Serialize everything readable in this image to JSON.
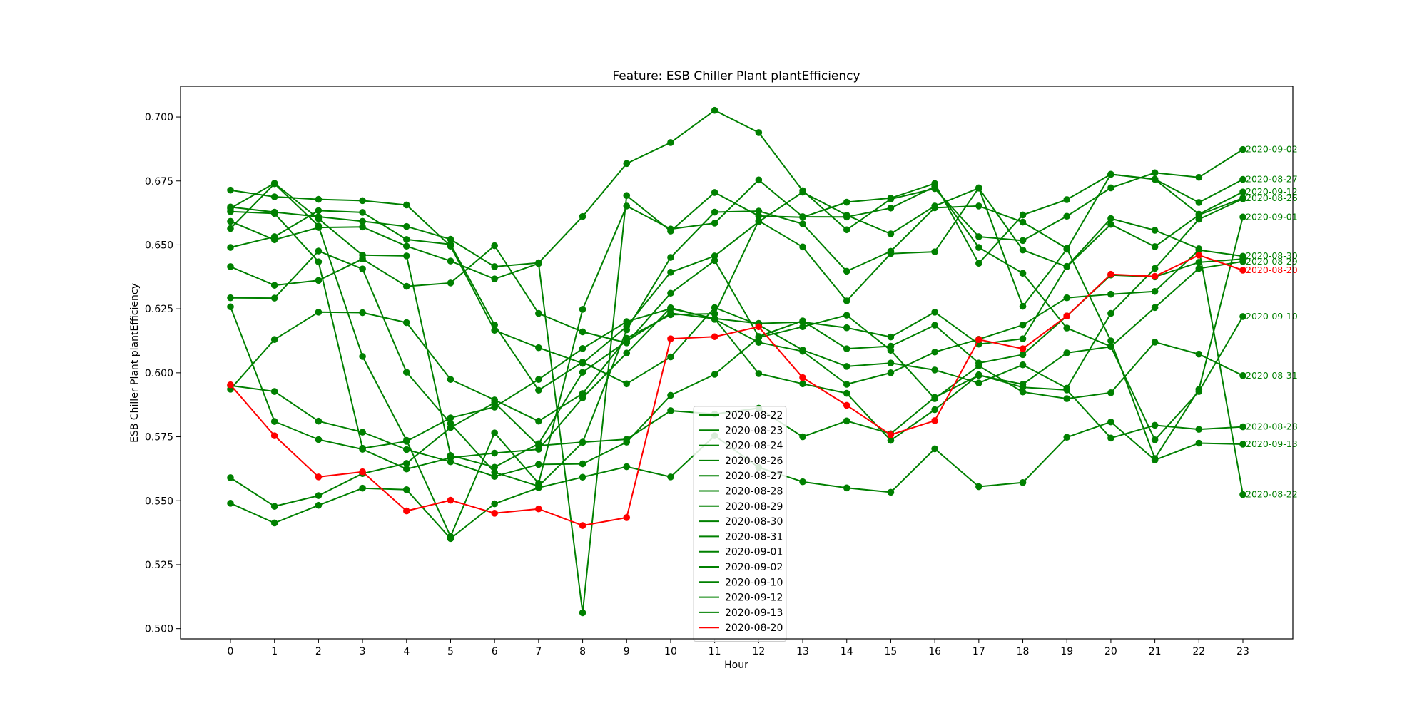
{
  "chart_data": {
    "type": "line",
    "title": "Feature: ESB Chiller Plant plantEfficiency",
    "xlabel": "Hour",
    "ylabel": "ESB Chiller Plant plantEfficiency",
    "x": [
      0,
      1,
      2,
      3,
      4,
      5,
      6,
      7,
      8,
      9,
      10,
      11,
      12,
      13,
      14,
      15,
      16,
      17,
      18,
      19,
      20,
      21,
      22,
      23
    ],
    "x_tick_labels": [
      "0",
      "1",
      "2",
      "3",
      "4",
      "5",
      "6",
      "7",
      "8",
      "9",
      "10",
      "11",
      "12",
      "13",
      "14",
      "15",
      "16",
      "17",
      "18",
      "19",
      "20",
      "21",
      "22",
      "23"
    ],
    "ylim": [
      0.496,
      0.712
    ],
    "y_ticks": [
      0.5,
      0.525,
      0.55,
      0.575,
      0.6,
      0.625,
      0.65,
      0.675,
      0.7
    ],
    "y_tick_labels": [
      "0.500",
      "0.525",
      "0.550",
      "0.575",
      "0.600",
      "0.625",
      "0.650",
      "0.675",
      "0.700"
    ],
    "grid": false,
    "legend_position": "bottom-center",
    "colors": {
      "normal": "#008000",
      "highlight": "#ff0000"
    },
    "series": [
      {
        "name": "2020-08-22",
        "color": "#008000",
        "label_at_end": true,
        "values": [
          0.663,
          0.6623,
          0.6434,
          0.5705,
          0.5732,
          0.5824,
          0.5866,
          0.5974,
          0.6095,
          0.62,
          0.6251,
          0.6212,
          0.6193,
          0.6198,
          0.6176,
          0.614,
          0.6237,
          0.6112,
          0.6133,
          0.6416,
          0.6603,
          0.6557,
          0.6485,
          0.5524
        ]
      },
      {
        "name": "2020-08-23",
        "color": "#008000",
        "label_at_end": false,
        "values": [
          0.6415,
          0.6342,
          0.6361,
          0.6445,
          0.6338,
          0.6351,
          0.6497,
          0.6232,
          0.616,
          0.6117,
          0.6311,
          0.6439,
          0.6142,
          0.6203,
          0.6094,
          0.6104,
          0.6186,
          0.6038,
          0.6071,
          0.6222,
          0.6382,
          0.6375,
          0.6432,
          0.6445
        ]
      },
      {
        "name": "2020-08-24",
        "color": "#008000",
        "label_at_end": false,
        "values": [
          0.649,
          0.6532,
          0.6634,
          0.6627,
          0.6521,
          0.6502,
          0.6187,
          0.5932,
          0.6042,
          0.5957,
          0.6062,
          0.6255,
          0.6187,
          0.6089,
          0.6025,
          0.6038,
          0.6011,
          0.596,
          0.6031,
          0.594,
          0.6232,
          0.6408,
          0.66,
          0.668
        ]
      },
      {
        "name": "2020-08-26",
        "color": "#008000",
        "label_at_end": true,
        "values": [
          0.6714,
          0.6688,
          0.6678,
          0.6673,
          0.6656,
          0.6495,
          0.6166,
          0.6098,
          0.6037,
          0.6181,
          0.6393,
          0.6457,
          0.659,
          0.6706,
          0.6616,
          0.6543,
          0.6652,
          0.6722,
          0.648,
          0.6415,
          0.658,
          0.6493,
          0.6617,
          0.6683
        ]
      },
      {
        "name": "2020-08-27",
        "color": "#008000",
        "label_at_end": true,
        "values": [
          0.5936,
          0.613,
          0.6237,
          0.6235,
          0.6196,
          0.5974,
          0.5894,
          0.5811,
          0.5919,
          0.6135,
          0.6227,
          0.6231,
          0.6594,
          0.6492,
          0.6281,
          0.6466,
          0.6473,
          0.6723,
          0.626,
          0.6483,
          0.6776,
          0.6757,
          0.6666,
          0.6756
        ]
      },
      {
        "name": "2020-08-28",
        "color": "#008000",
        "label_at_end": true,
        "values": [
          0.6643,
          0.6741,
          0.6602,
          0.646,
          0.6457,
          0.5677,
          0.5631,
          0.5723,
          0.6002,
          0.6124,
          0.6233,
          0.6211,
          0.5997,
          0.5957,
          0.592,
          0.5736,
          0.5856,
          0.5992,
          0.5943,
          0.5933,
          0.5745,
          0.5795,
          0.5779,
          0.5789
        ]
      },
      {
        "name": "2020-08-29",
        "color": "#008000",
        "label_at_end": true,
        "values": [
          0.559,
          0.5478,
          0.552,
          0.5606,
          0.5646,
          0.5786,
          0.5883,
          0.5715,
          0.5729,
          0.574,
          0.5852,
          0.5839,
          0.5862,
          0.575,
          0.5812,
          0.5762,
          0.5904,
          0.599,
          0.5955,
          0.6078,
          0.6102,
          0.6255,
          0.6408,
          0.6435
        ]
      },
      {
        "name": "2020-08-30",
        "color": "#008000",
        "label_at_end": true,
        "values": [
          0.6258,
          0.581,
          0.5739,
          0.5701,
          0.5624,
          0.5668,
          0.5686,
          0.5701,
          0.5902,
          0.6077,
          0.6254,
          0.6209,
          0.6119,
          0.6084,
          0.5955,
          0.6,
          0.6081,
          0.6131,
          0.6187,
          0.6293,
          0.6307,
          0.6318,
          0.648,
          0.6456
        ]
      },
      {
        "name": "2020-08-31",
        "color": "#008000",
        "label_at_end": true,
        "values": [
          0.595,
          0.5927,
          0.5811,
          0.5768,
          0.57,
          0.5652,
          0.5595,
          0.5642,
          0.5644,
          0.5729,
          0.5912,
          0.5994,
          0.6138,
          0.618,
          0.6225,
          0.6088,
          0.5899,
          0.6027,
          0.5925,
          0.5899,
          0.5922,
          0.612,
          0.6073,
          0.5989
        ]
      },
      {
        "name": "2020-09-01",
        "color": "#008000",
        "label_at_end": true,
        "values": [
          0.6293,
          0.6292,
          0.6476,
          0.6406,
          0.6002,
          0.5802,
          0.5611,
          0.5557,
          0.5728,
          0.6168,
          0.6451,
          0.6628,
          0.6632,
          0.6582,
          0.6397,
          0.6475,
          0.6645,
          0.6652,
          0.6589,
          0.6486,
          0.6125,
          0.5665,
          0.5935,
          0.6609
        ]
      },
      {
        "name": "2020-09-02",
        "color": "#008000",
        "label_at_end": true,
        "values": [
          0.6648,
          0.6628,
          0.661,
          0.6592,
          0.6572,
          0.6522,
          0.6415,
          0.643,
          0.6611,
          0.6818,
          0.69,
          0.7026,
          0.6939,
          0.6712,
          0.6559,
          0.6679,
          0.672,
          0.6532,
          0.6517,
          0.6612,
          0.6723,
          0.6782,
          0.6764,
          0.6873
        ]
      },
      {
        "name": "2020-09-10",
        "color": "#008000",
        "label_at_end": true,
        "values": [
          0.6564,
          0.6739,
          0.6574,
          0.6064,
          0.5736,
          0.536,
          0.5765,
          0.5568,
          0.6248,
          0.6652,
          0.6562,
          0.6585,
          0.6754,
          0.661,
          0.6609,
          0.6644,
          0.6728,
          0.649,
          0.6389,
          0.6175,
          0.6103,
          0.5738,
          0.5927,
          0.622
        ]
      },
      {
        "name": "2020-09-12",
        "color": "#008000",
        "label_at_end": true,
        "values": [
          0.6592,
          0.652,
          0.6568,
          0.657,
          0.6495,
          0.6437,
          0.6367,
          0.6427,
          0.5062,
          0.6693,
          0.6554,
          0.6705,
          0.6613,
          0.6608,
          0.6667,
          0.6683,
          0.674,
          0.6428,
          0.6617,
          0.6677,
          0.6776,
          0.6756,
          0.662,
          0.6707
        ]
      },
      {
        "name": "2020-09-13",
        "color": "#008000",
        "label_at_end": true,
        "values": [
          0.549,
          0.5413,
          0.5482,
          0.5549,
          0.5543,
          0.5352,
          0.5488,
          0.5551,
          0.5592,
          0.5633,
          0.5593,
          0.5754,
          0.563,
          0.5574,
          0.555,
          0.5533,
          0.5703,
          0.5555,
          0.5571,
          0.5748,
          0.5808,
          0.5659,
          0.5725,
          0.5721
        ]
      },
      {
        "name": "2020-08-20",
        "color": "#ff0000",
        "label_at_end": true,
        "values": [
          0.5953,
          0.5754,
          0.5593,
          0.5613,
          0.546,
          0.5502,
          0.5451,
          0.5468,
          0.5403,
          0.5434,
          0.6133,
          0.6141,
          0.618,
          0.5981,
          0.5873,
          0.5758,
          0.5813,
          0.613,
          0.6094,
          0.6222,
          0.6385,
          0.6377,
          0.646,
          0.6401
        ]
      }
    ]
  }
}
